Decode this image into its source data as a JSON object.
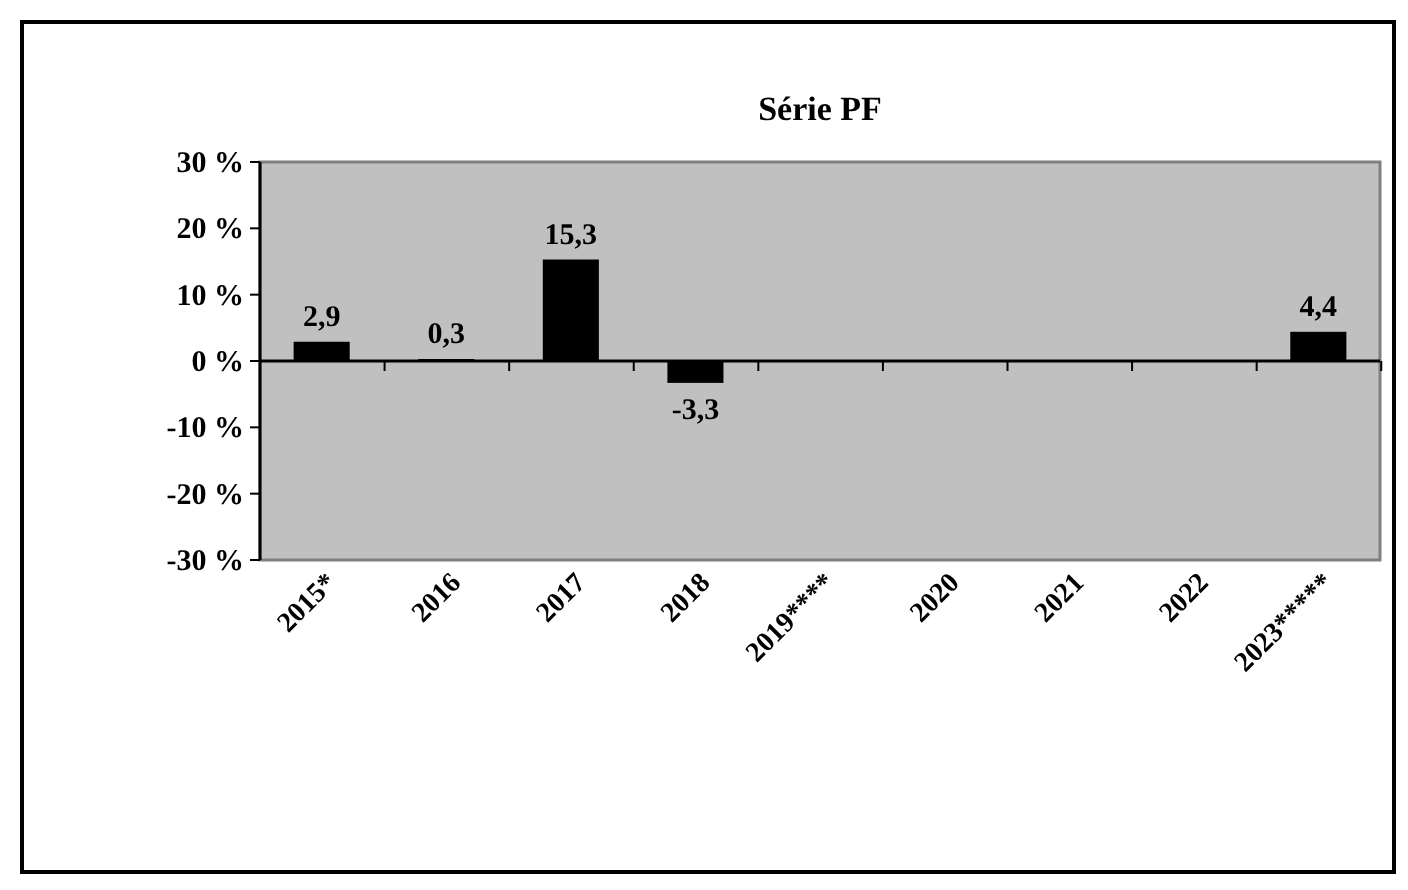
{
  "chart_data": {
    "type": "bar",
    "title": "Série PF",
    "categories": [
      "2015*",
      "2016",
      "2017",
      "2018",
      "2019****",
      "2020",
      "2021",
      "2022",
      "2023*****"
    ],
    "values": [
      2.9,
      0.3,
      15.3,
      -3.3,
      null,
      null,
      null,
      null,
      4.4
    ],
    "value_labels": [
      "2,9",
      "0,3",
      "15,3",
      "-3,3",
      null,
      null,
      null,
      null,
      "4,4"
    ],
    "color": "#000000",
    "ylim": [
      -30,
      30
    ],
    "yticks": [
      {
        "value": -30,
        "label": "-30 %"
      },
      {
        "value": -20,
        "label": "-20 %"
      },
      {
        "value": -10,
        "label": "-10 %"
      },
      {
        "value": 0,
        "label": "0 %"
      },
      {
        "value": 10,
        "label": "10 %"
      },
      {
        "value": 20,
        "label": "20 %"
      },
      {
        "value": 30,
        "label": "30 %"
      }
    ],
    "orientation": "vertical"
  }
}
